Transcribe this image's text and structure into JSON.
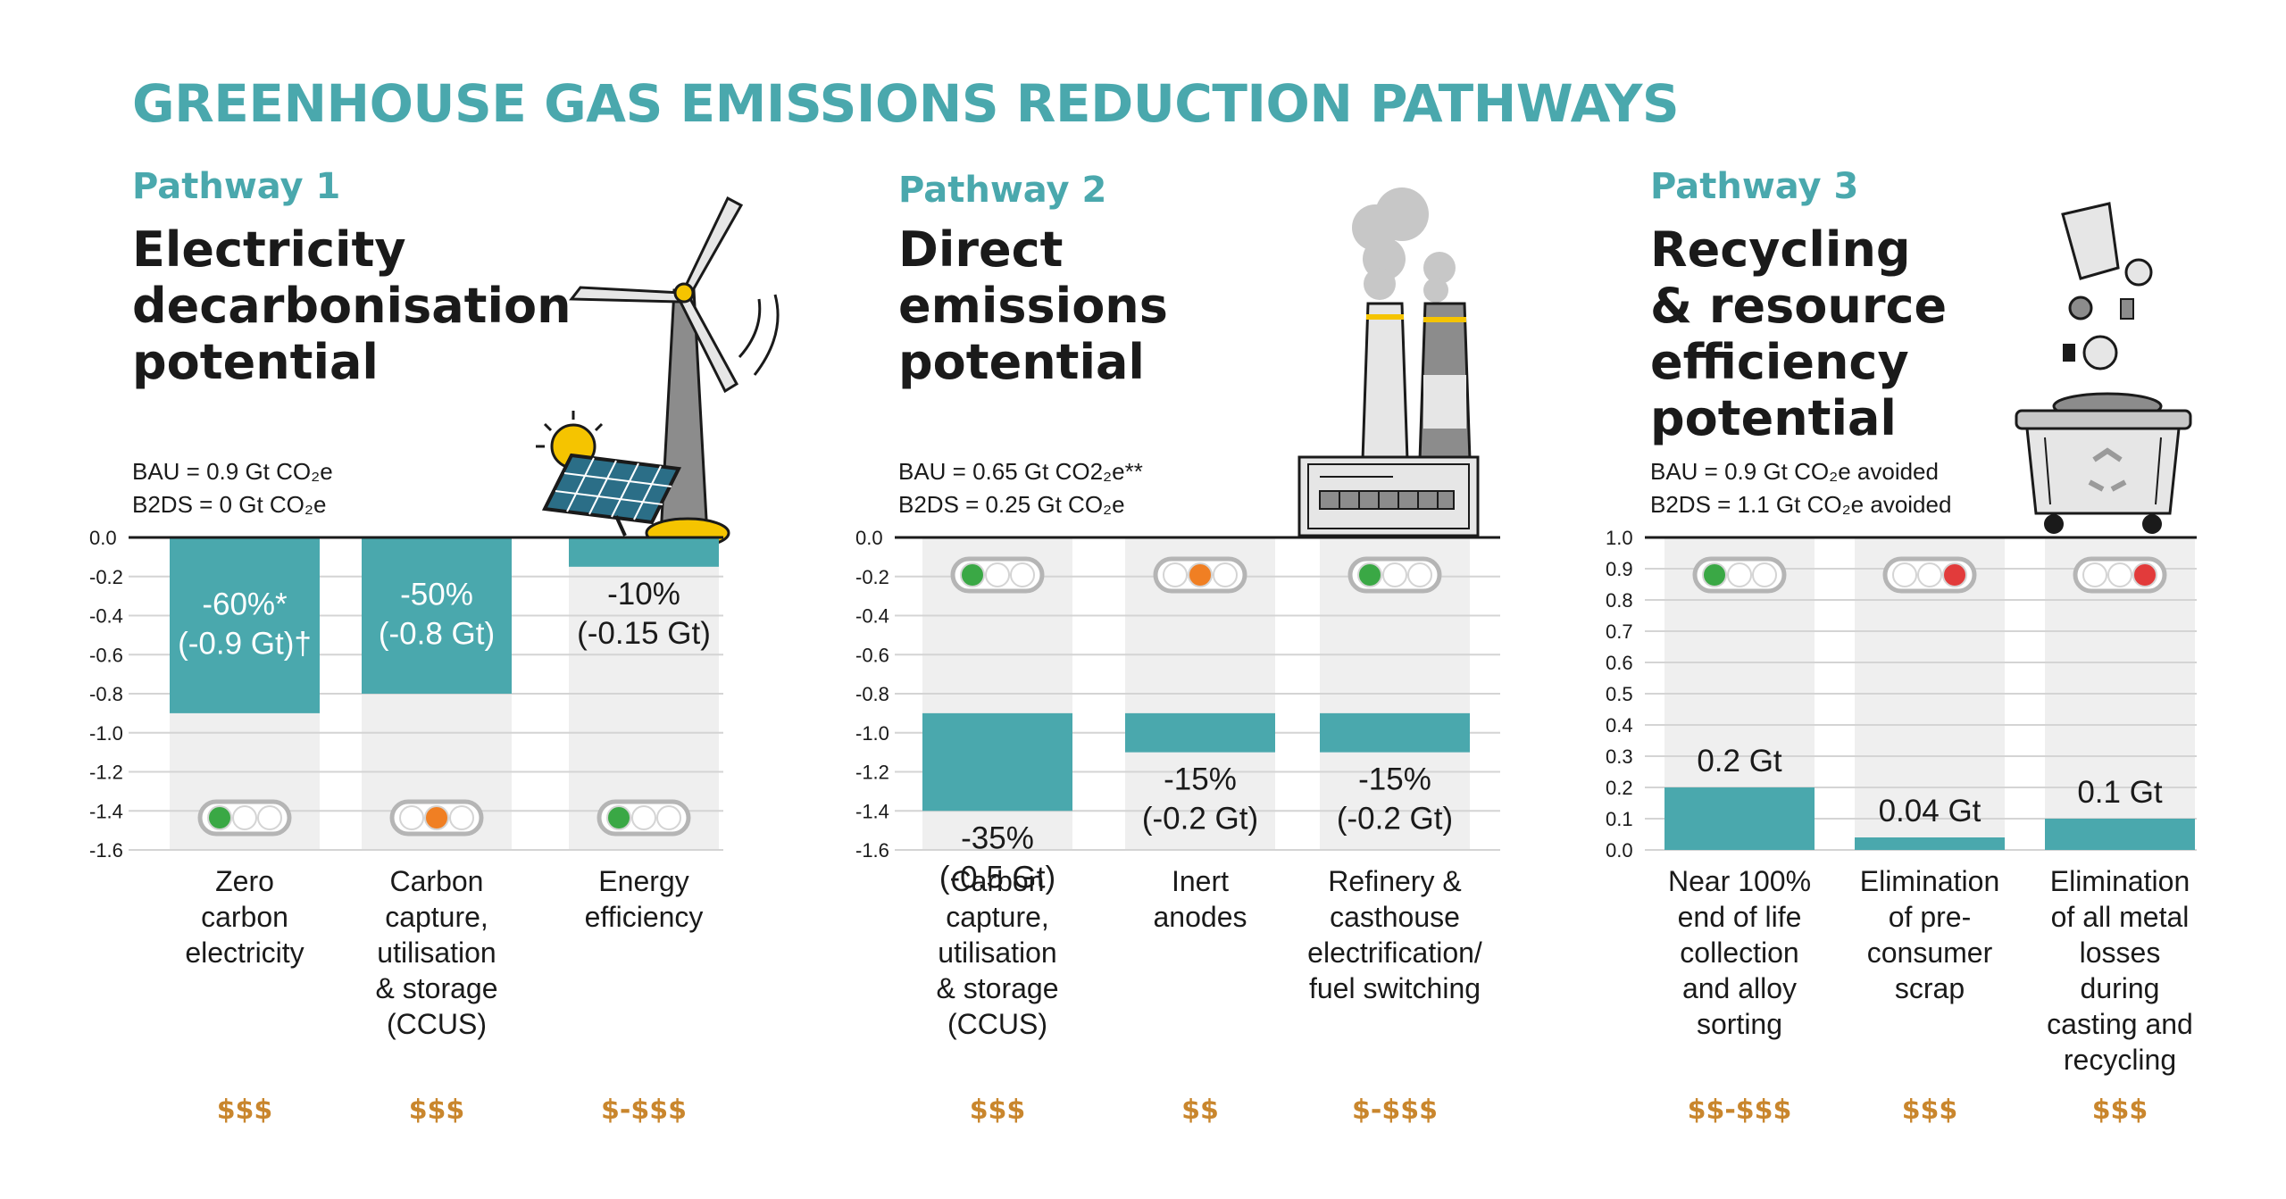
{
  "title": "GREENHOUSE GAS EMISSIONS REDUCTION PATHWAYS",
  "colors": {
    "title": "#4aa8ad",
    "bar": "#4aa8ad",
    "column_bg": "#efefef",
    "cost": "#c9862d",
    "light_green": "#3aa845",
    "light_orange": "#f07f23",
    "light_red": "#e23b3b"
  },
  "pathways": [
    {
      "label": "Pathway 1",
      "title_lines": [
        "Electricity",
        "decarbonisation",
        "potential"
      ],
      "bau": "BAU = 0.9 Gt CO₂e",
      "b2ds": "B2DS = 0 Gt CO₂e",
      "icon": "wind-turbine-solar-panel-icon"
    },
    {
      "label": "Pathway 2",
      "title_lines": [
        "Direct",
        "emissions",
        "potential"
      ],
      "bau": "BAU = 0.65 Gt CO2₂e**",
      "b2ds": "B2DS = 0.25 Gt CO₂e",
      "icon": "factory-smokestacks-icon"
    },
    {
      "label": "Pathway 3",
      "title_lines": [
        "Recycling",
        "& resource",
        "efficiency",
        "potential"
      ],
      "bau": "BAU = 0.9 Gt CO₂e avoided",
      "b2ds": "B2DS = 1.1 Gt CO₂e avoided",
      "icon": "recycling-bin-icon"
    }
  ],
  "chart_data": [
    {
      "type": "bar",
      "ylim": [
        -1.6,
        0
      ],
      "y_ticks": [
        "0.0",
        "-0.2",
        "-0.4",
        "-0.6",
        "-0.8",
        "-1.0",
        "-1.2",
        "-1.4",
        "-1.6"
      ],
      "categories": [
        [
          "Zero",
          "carbon",
          "electricity"
        ],
        [
          "Carbon",
          "capture,",
          "utilisation",
          "& storage",
          "(CCUS)"
        ],
        [
          "Energy",
          "efficiency"
        ]
      ],
      "values": [
        -0.9,
        -0.8,
        -0.15
      ],
      "labels": [
        [
          "-60%*",
          "(-0.9 Gt)†"
        ],
        [
          "-50%",
          "(-0.8 Gt)"
        ],
        [
          "-10%",
          "(-0.15 Gt)"
        ]
      ],
      "traffic_lights": [
        "green",
        "orange",
        "green"
      ],
      "costs": [
        "$$$",
        "$$$",
        "$-$$$"
      ]
    },
    {
      "type": "bar",
      "ylim": [
        -1.6,
        0
      ],
      "y_ticks": [
        "0.0",
        "-0.2",
        "-0.4",
        "-0.6",
        "-0.8",
        "-1.0",
        "-1.2",
        "-1.4",
        "-1.6"
      ],
      "categories": [
        [
          "Carbon",
          "capture,",
          "utilisation",
          "& storage",
          "(CCUS)"
        ],
        [
          "Inert",
          "anodes"
        ],
        [
          "Refinery &",
          "casthouse",
          "electrification/",
          "fuel switching"
        ]
      ],
      "values": [
        -0.5,
        -0.2,
        -0.2
      ],
      "labels": [
        [
          "-35%",
          "(-0.5 Gt)"
        ],
        [
          "-15%",
          "(-0.2 Gt)"
        ],
        [
          "-15%",
          "(-0.2 Gt)"
        ]
      ],
      "traffic_lights": [
        "green",
        "orange",
        "green"
      ],
      "costs": [
        "$$$",
        "$$",
        "$-$$$"
      ]
    },
    {
      "type": "bar",
      "ylim": [
        0,
        1.0
      ],
      "y_ticks": [
        "1.0",
        "0.9",
        "0.8",
        "0.7",
        "0.6",
        "0.5",
        "0.4",
        "0.3",
        "0.2",
        "0.1",
        "0.0"
      ],
      "categories": [
        [
          "Near 100%",
          "end of life",
          "collection",
          "and alloy",
          "sorting"
        ],
        [
          "Elimination",
          "of pre-",
          "consumer",
          "scrap"
        ],
        [
          "Elimination",
          "of all metal",
          "losses",
          "during",
          "casting and",
          "recycling"
        ]
      ],
      "values": [
        0.2,
        0.04,
        0.1
      ],
      "labels": [
        [
          "0.2 Gt"
        ],
        [
          "0.04 Gt"
        ],
        [
          "0.1 Gt"
        ]
      ],
      "traffic_lights": [
        "green",
        "red",
        "red"
      ],
      "costs": [
        "$$-$$$",
        "$$$",
        "$$$"
      ]
    }
  ]
}
